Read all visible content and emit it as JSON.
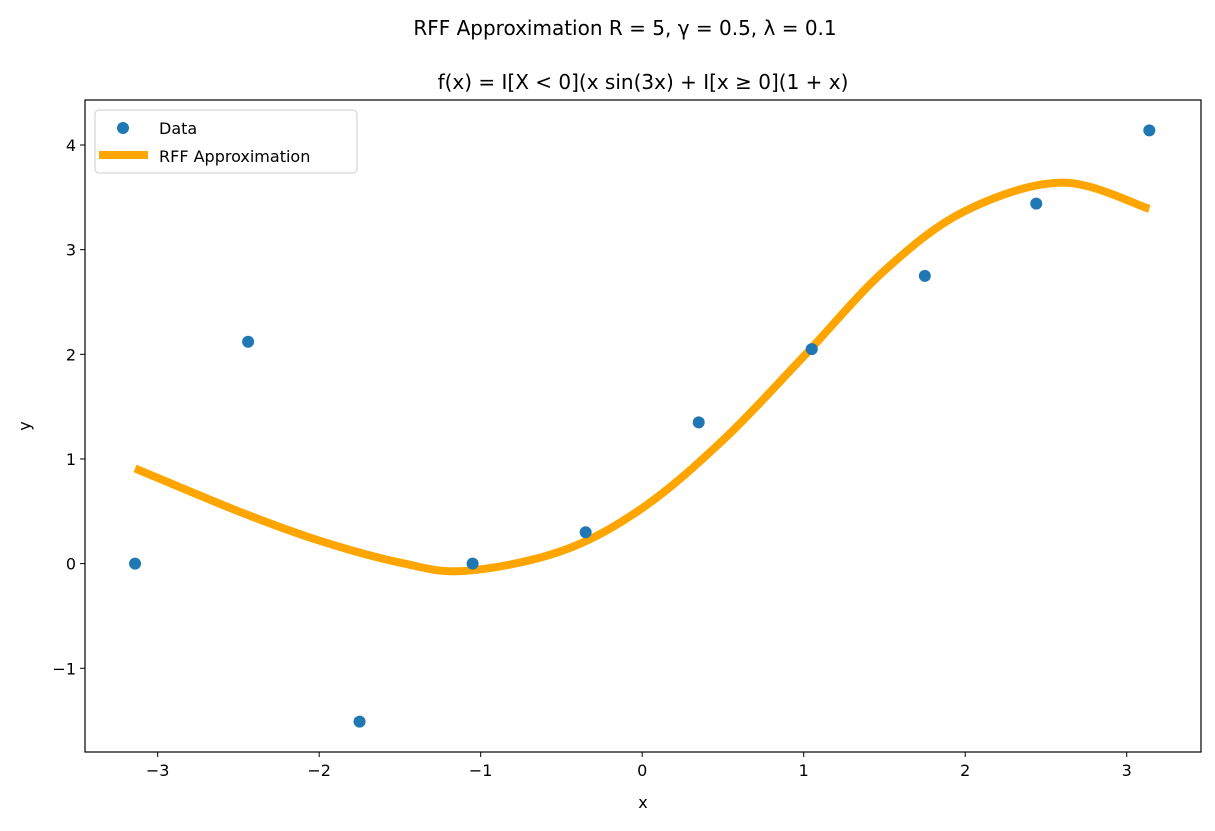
{
  "chart_data": {
    "type": "line",
    "suptitle": "RFF Approximation R = 5, γ = 0.5, λ = 0.1",
    "title": "f(x) = I[X < 0](x sin(3x) + I[x ≥ 0](1 + x)",
    "xlabel": "x",
    "ylabel": "y",
    "xlim": [
      -3.45,
      3.46
    ],
    "ylim": [
      -1.8,
      4.43
    ],
    "xticks": [
      -3,
      -2,
      -1,
      0,
      1,
      2,
      3
    ],
    "yticks": [
      -1,
      0,
      1,
      2,
      3,
      4
    ],
    "xtick_labels": [
      "−3",
      "−2",
      "−1",
      "0",
      "1",
      "2",
      "3"
    ],
    "ytick_labels": [
      "−1",
      "0",
      "1",
      "2",
      "3",
      "4"
    ],
    "grid": false,
    "legend_position": "upper-left",
    "series": [
      {
        "name": "Data",
        "kind": "scatter",
        "color": "#1f77b4",
        "x": [
          -3.14,
          -2.44,
          -1.75,
          -1.05,
          -0.35,
          0.35,
          1.05,
          1.75,
          2.44,
          3.14
        ],
        "y": [
          0.0,
          2.12,
          -1.51,
          0.0,
          0.3,
          1.35,
          2.05,
          2.75,
          3.44,
          4.14
        ]
      },
      {
        "name": "RFF Approximation",
        "kind": "line",
        "color": "#ffa500",
        "x": [
          -3.14,
          -2.5,
          -2.0,
          -1.5,
          -1.1,
          -0.5,
          0.0,
          0.5,
          1.0,
          1.5,
          2.0,
          2.6,
          3.14
        ],
        "y": [
          0.91,
          0.5,
          0.22,
          0.01,
          -0.07,
          0.12,
          0.53,
          1.18,
          1.98,
          2.8,
          3.37,
          3.64,
          3.39
        ]
      }
    ]
  }
}
